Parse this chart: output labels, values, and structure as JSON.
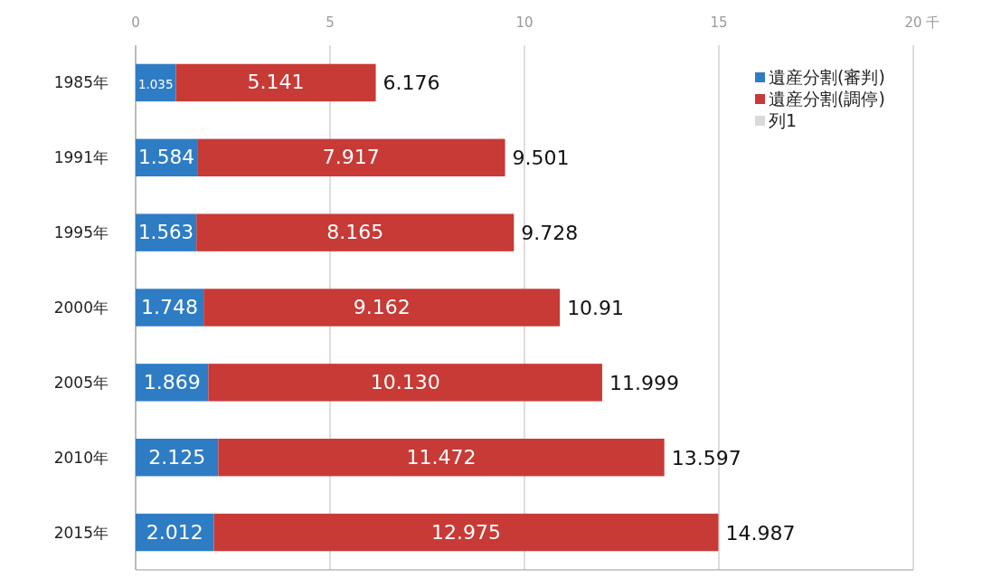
{
  "chart_data": {
    "type": "bar",
    "orientation": "horizontal",
    "stacked": true,
    "categories": [
      "1985年",
      "1991年",
      "1995年",
      "2000年",
      "2005年",
      "2010年",
      "2015年"
    ],
    "series": [
      {
        "name": "遺産分割(審判)",
        "color": "#2e7cc4",
        "values": [
          1.035,
          1.584,
          1.563,
          1.748,
          1.869,
          2.125,
          2.012
        ],
        "value_labels": [
          "1.035",
          "1.584",
          "1.563",
          "1.748",
          "1.869",
          "2.125",
          "2.012"
        ]
      },
      {
        "name": "遺産分割(調停)",
        "color": "#c83a36",
        "values": [
          5.141,
          7.917,
          8.165,
          9.162,
          10.13,
          11.472,
          12.975
        ],
        "value_labels": [
          "5.141",
          "7.917",
          "8.165",
          "9.162",
          "10.130",
          "11.472",
          "12.975"
        ]
      },
      {
        "name": "列1",
        "color": "#d9d9d9",
        "values": [
          null,
          null,
          null,
          null,
          null,
          null,
          null
        ]
      }
    ],
    "totals": [
      "6.176",
      "9.501",
      "9.728",
      "10.91",
      "11.999",
      "13.597",
      "14.987"
    ],
    "xlim": [
      0,
      20
    ],
    "xticks": [
      0,
      5,
      10,
      15,
      20
    ],
    "xlabel": "千",
    "grid": "x",
    "legend": "top right"
  }
}
